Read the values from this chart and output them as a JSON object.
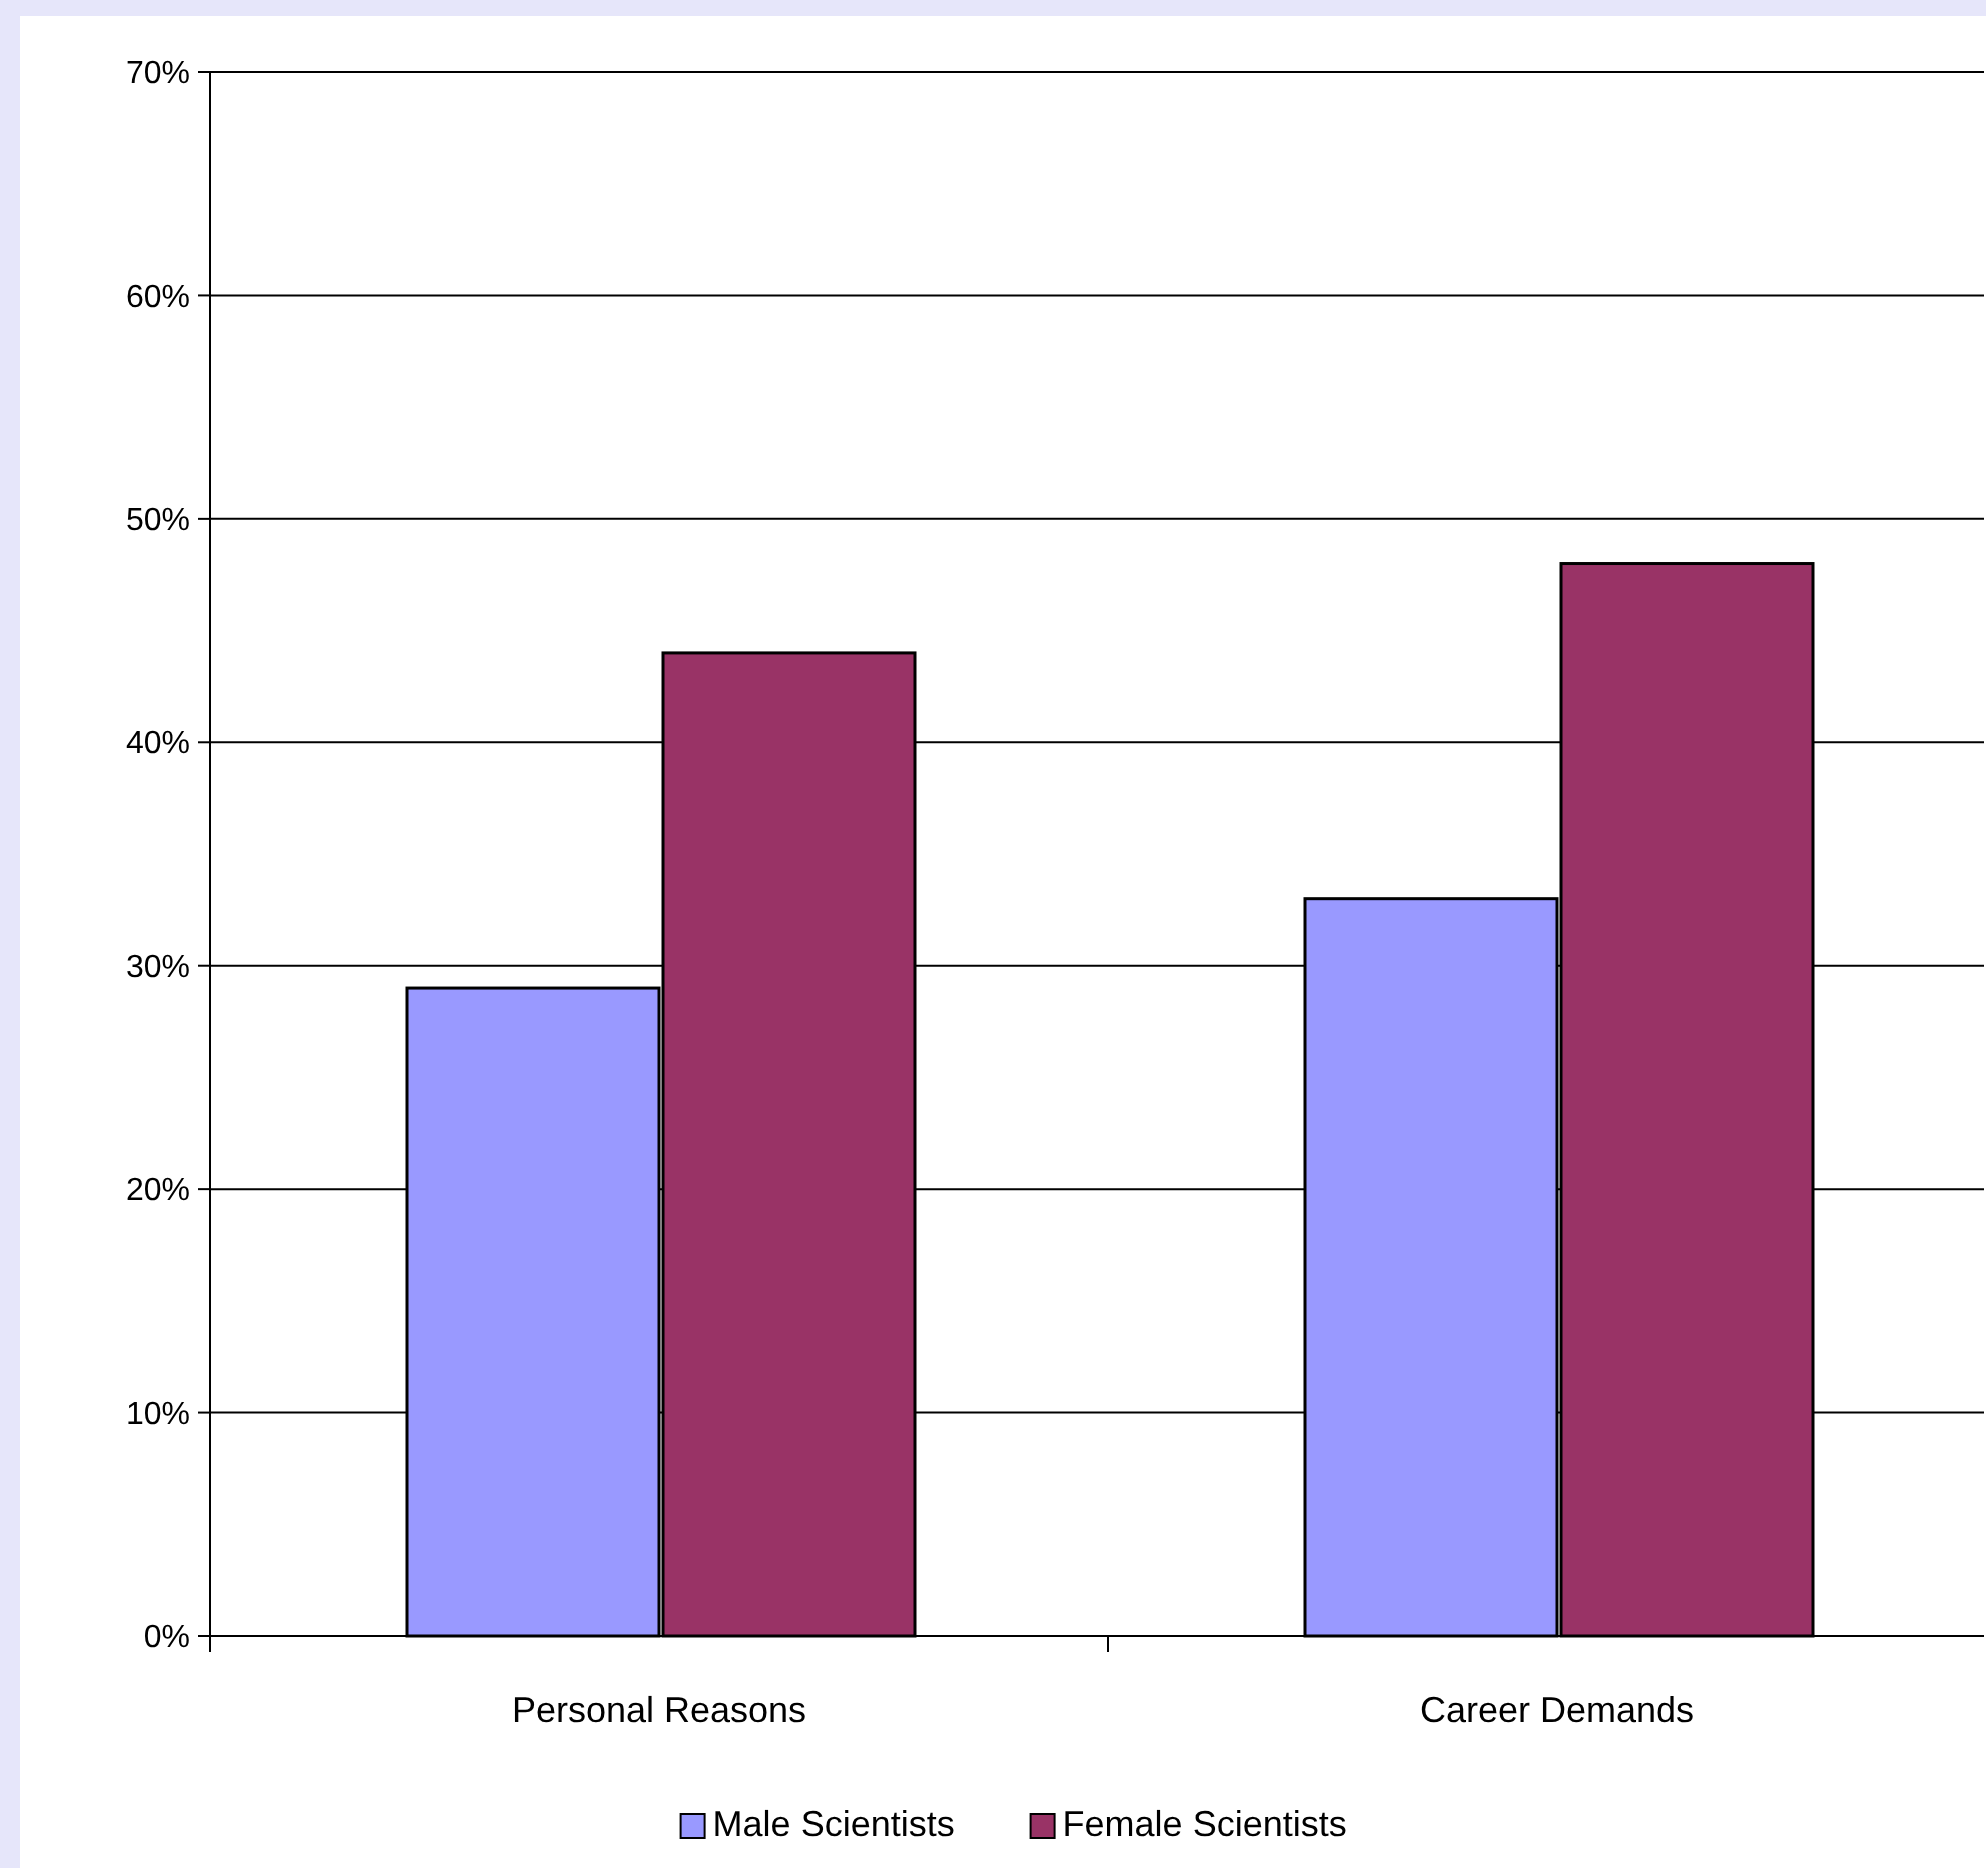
{
  "chart_data": {
    "type": "bar",
    "categories": [
      "Personal Reasons",
      "Career Demands"
    ],
    "series": [
      {
        "name": "Male Scientists",
        "color": "#9999ff",
        "values": [
          29,
          33
        ]
      },
      {
        "name": "Female Scientists",
        "color": "#993366",
        "values": [
          44,
          48
        ]
      }
    ],
    "ylim": [
      0,
      70
    ],
    "yticks": [
      {
        "value": 0,
        "label": "0%"
      },
      {
        "value": 10,
        "label": "10%"
      },
      {
        "value": 20,
        "label": "20%"
      },
      {
        "value": 30,
        "label": "30%"
      },
      {
        "value": 40,
        "label": "40%"
      },
      {
        "value": 50,
        "label": "50%"
      },
      {
        "value": 60,
        "label": "60%"
      },
      {
        "value": 70,
        "label": "70%"
      }
    ],
    "grid": "y",
    "legend": "bottom"
  }
}
